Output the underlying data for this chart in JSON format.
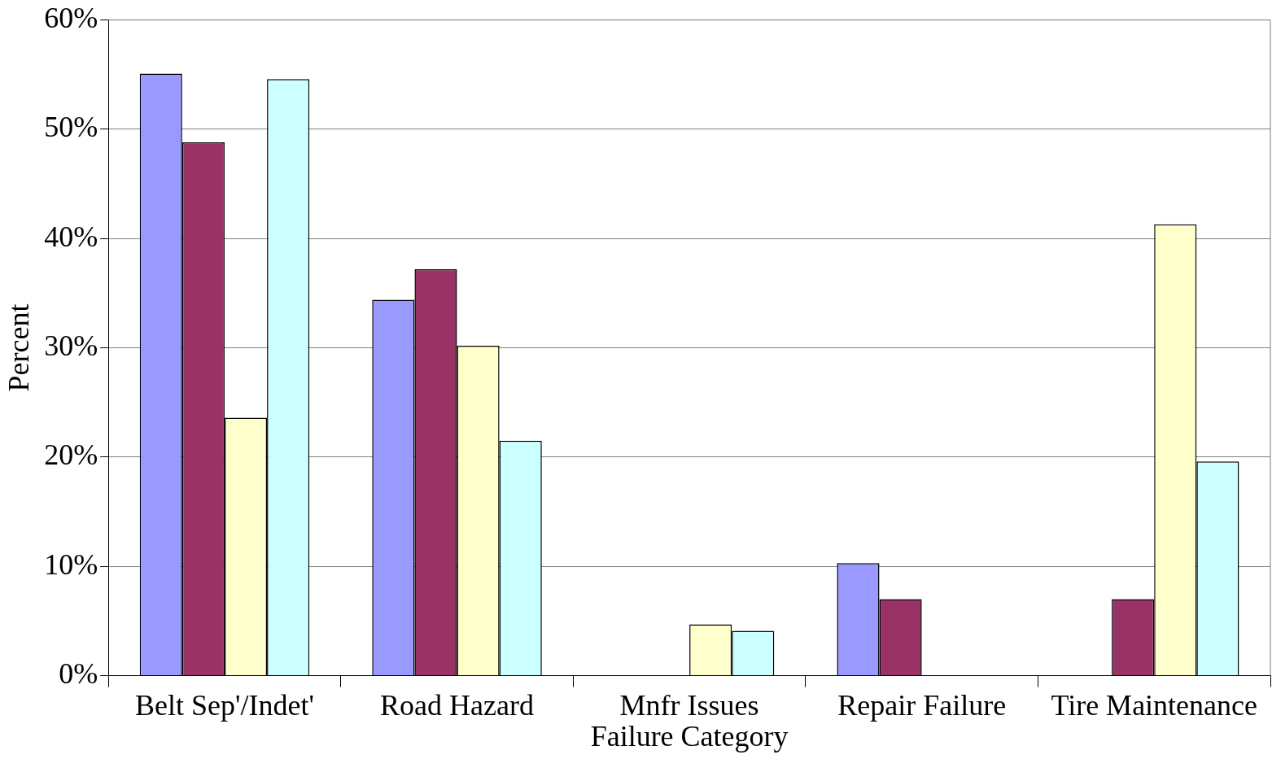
{
  "chart_data": {
    "type": "bar",
    "xlabel": "Failure Category",
    "ylabel": "Percent",
    "categories": [
      "Belt Sep'/Indet'",
      "Road Hazard",
      "Mnfr Issues",
      "Repair Failure",
      "Tire Maintenance"
    ],
    "series": [
      {
        "color": "#9999ff",
        "values": [
          55.1,
          34.4,
          null,
          10.3,
          null
        ]
      },
      {
        "color": "#993366",
        "values": [
          48.8,
          37.2,
          null,
          7.0,
          7.0
        ]
      },
      {
        "color": "#ffffcc",
        "values": [
          23.6,
          30.2,
          4.7,
          null,
          41.3
        ]
      },
      {
        "color": "#ccffff",
        "values": [
          54.6,
          21.5,
          4.1,
          null,
          19.6
        ]
      }
    ],
    "ylim": [
      0,
      60
    ],
    "yticks": [
      {
        "value": 0,
        "label": "0%"
      },
      {
        "value": 10,
        "label": "10%"
      },
      {
        "value": 20,
        "label": "20%"
      },
      {
        "value": 30,
        "label": "30%"
      },
      {
        "value": 40,
        "label": "40%"
      },
      {
        "value": 50,
        "label": "50%"
      },
      {
        "value": 60,
        "label": "60%"
      }
    ],
    "grid": "y",
    "legend": false
  }
}
